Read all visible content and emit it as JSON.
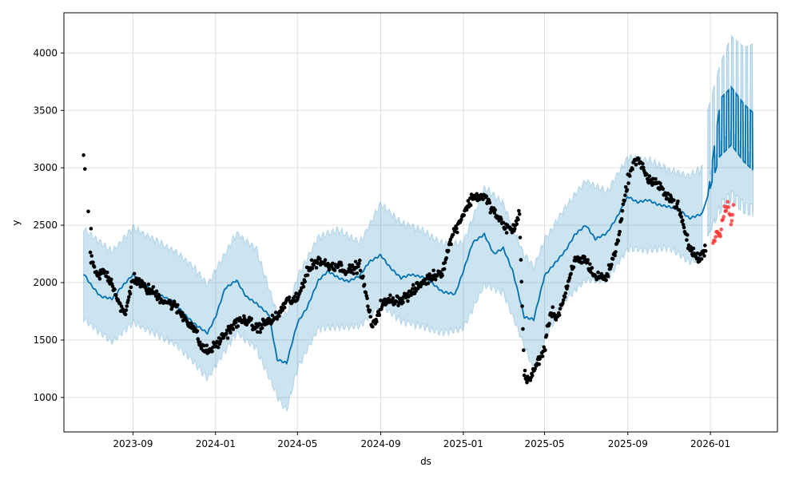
{
  "chart_data": {
    "type": "scatter",
    "title": "",
    "xlabel": "ds",
    "ylabel": "y",
    "x_ticks": [
      "2023-09",
      "2024-01",
      "2024-05",
      "2024-09",
      "2025-01",
      "2025-05",
      "2025-09",
      "2026-01"
    ],
    "y_ticks": [
      1000,
      1500,
      2000,
      2500,
      3000,
      3500,
      4000
    ],
    "xlim": [
      "2023-05-22",
      "2026-04-10"
    ],
    "ylim": [
      700,
      4350
    ],
    "grid": true,
    "legend": "none",
    "colors": {
      "observed": "#000000",
      "test": "#ff3333",
      "forecast": "#0072B2",
      "interval": "#0072B2"
    },
    "series": [
      {
        "kind": "forecast-line",
        "x": [
          "2023-06-20",
          "2023-07-01",
          "2023-07-15",
          "2023-08-01",
          "2023-08-15",
          "2023-09-01",
          "2023-09-15",
          "2023-10-01",
          "2023-10-15",
          "2023-11-01",
          "2023-11-15",
          "2023-12-01",
          "2023-12-20",
          "2024-01-01",
          "2024-01-15",
          "2024-02-01",
          "2024-02-15",
          "2024-03-01",
          "2024-03-20",
          "2024-04-01",
          "2024-04-15",
          "2024-05-01",
          "2024-05-15",
          "2024-06-01",
          "2024-06-15",
          "2024-07-01",
          "2024-07-15",
          "2024-08-01",
          "2024-08-15",
          "2024-09-01",
          "2024-09-15",
          "2024-10-01",
          "2024-10-15",
          "2024-11-01",
          "2024-11-15",
          "2024-12-01",
          "2024-12-20",
          "2025-01-01",
          "2025-01-15",
          "2025-02-01",
          "2025-02-15",
          "2025-03-01",
          "2025-03-15",
          "2025-04-01",
          "2025-04-15",
          "2025-05-01",
          "2025-05-15",
          "2025-06-01",
          "2025-06-15",
          "2025-07-01",
          "2025-07-15",
          "2025-08-01",
          "2025-08-15",
          "2025-09-01",
          "2025-09-15",
          "2025-10-01",
          "2025-10-15",
          "2025-11-01",
          "2025-11-15",
          "2025-12-01",
          "2025-12-20"
        ],
        "y": [
          2080,
          1980,
          1880,
          1860,
          1960,
          2070,
          1990,
          1920,
          1880,
          1830,
          1730,
          1640,
          1560,
          1700,
          1950,
          2020,
          1880,
          1820,
          1720,
          1330,
          1300,
          1650,
          1780,
          2020,
          2100,
          2040,
          2010,
          2060,
          2180,
          2240,
          2130,
          2040,
          2070,
          2050,
          2000,
          1920,
          1900,
          2100,
          2350,
          2420,
          2250,
          2300,
          2100,
          1700,
          1680,
          2060,
          2160,
          2280,
          2420,
          2500,
          2380,
          2430,
          2560,
          2750,
          2700,
          2720,
          2680,
          2660,
          2640,
          2560,
          2600
        ]
      },
      {
        "kind": "interval",
        "x": [
          "2023-06-20",
          "2023-08-01",
          "2023-09-01",
          "2023-10-01",
          "2023-11-01",
          "2023-12-01",
          "2023-12-20",
          "2024-02-01",
          "2024-03-01",
          "2024-04-01",
          "2024-04-15",
          "2024-05-01",
          "2024-06-01",
          "2024-07-01",
          "2024-08-01",
          "2024-09-01",
          "2024-10-01",
          "2024-11-01",
          "2024-12-01",
          "2025-01-01",
          "2025-02-01",
          "2025-03-01",
          "2025-04-01",
          "2025-04-15",
          "2025-05-01",
          "2025-06-01",
          "2025-07-01",
          "2025-08-01",
          "2025-09-01",
          "2025-10-01",
          "2025-11-01",
          "2025-12-01",
          "2025-12-20"
        ],
        "lower": [
          1680,
          1480,
          1650,
          1560,
          1470,
          1300,
          1160,
          1560,
          1430,
          1010,
          880,
          1250,
          1600,
          1610,
          1620,
          1810,
          1660,
          1620,
          1560,
          1600,
          1980,
          1910,
          1450,
          1230,
          1510,
          1850,
          2020,
          2020,
          2290,
          2280,
          2300,
          2180,
          2200
        ],
        "upper": [
          2470,
          2270,
          2480,
          2380,
          2280,
          2130,
          1980,
          2430,
          2300,
          1730,
          1720,
          2050,
          2400,
          2460,
          2350,
          2690,
          2520,
          2460,
          2340,
          2350,
          2830,
          2690,
          2240,
          2140,
          2370,
          2660,
          2890,
          2790,
          3090,
          3070,
          2980,
          2930,
          3000
        ]
      },
      {
        "kind": "observed",
        "x": [
          "2023-06-20",
          "2023-06-25",
          "2023-07-01",
          "2023-07-10",
          "2023-07-20",
          "2023-08-01",
          "2023-08-10",
          "2023-08-20",
          "2023-09-01",
          "2023-09-10",
          "2023-09-20",
          "2023-10-01",
          "2023-10-15",
          "2023-11-01",
          "2023-11-15",
          "2023-12-01",
          "2023-12-10",
          "2023-12-20",
          "2024-01-01",
          "2024-01-15",
          "2024-02-01",
          "2024-02-15",
          "2024-03-01",
          "2024-03-15",
          "2024-04-01",
          "2024-04-15",
          "2024-05-01",
          "2024-05-15",
          "2024-06-01",
          "2024-06-15",
          "2024-07-01",
          "2024-07-15",
          "2024-08-01",
          "2024-08-10",
          "2024-08-20",
          "2024-09-01",
          "2024-09-15",
          "2024-10-01",
          "2024-10-15",
          "2024-11-01",
          "2024-11-15",
          "2024-12-01",
          "2024-12-15",
          "2025-01-01",
          "2025-01-15",
          "2025-02-01",
          "2025-02-15",
          "2025-03-01",
          "2025-03-15",
          "2025-03-25",
          "2025-04-01",
          "2025-04-10",
          "2025-04-20",
          "2025-05-01",
          "2025-05-10",
          "2025-05-20",
          "2025-06-01",
          "2025-06-15",
          "2025-07-01",
          "2025-07-15",
          "2025-08-01",
          "2025-08-15",
          "2025-09-01",
          "2025-09-15",
          "2025-10-01",
          "2025-10-15",
          "2025-11-01",
          "2025-11-15",
          "2025-12-01",
          "2025-12-15",
          "2025-12-25"
        ],
        "y": [
          3000,
          2620,
          2200,
          2050,
          2100,
          2000,
          1850,
          1700,
          2050,
          2000,
          1950,
          1920,
          1850,
          1800,
          1700,
          1600,
          1450,
          1400,
          1450,
          1550,
          1650,
          1680,
          1600,
          1650,
          1700,
          1840,
          1850,
          2100,
          2200,
          2150,
          2150,
          2100,
          2150,
          1900,
          1600,
          1800,
          1850,
          1850,
          1900,
          2000,
          2050,
          2100,
          2400,
          2600,
          2750,
          2750,
          2620,
          2500,
          2450,
          2600,
          1200,
          1150,
          1300,
          1420,
          1750,
          1700,
          1900,
          2200,
          2200,
          2050,
          2050,
          2300,
          2900,
          3100,
          2900,
          2850,
          2750,
          2650,
          2300,
          2200,
          2300
        ]
      },
      {
        "kind": "test",
        "x": [
          "2026-01-05",
          "2026-01-10",
          "2026-01-15",
          "2026-01-20",
          "2026-01-25",
          "2026-02-01",
          "2026-02-05"
        ],
        "y": [
          2350,
          2450,
          2400,
          2600,
          2700,
          2550,
          2650
        ]
      },
      {
        "kind": "future-forecast",
        "x": [
          "2025-12-28",
          "2026-01-15",
          "2026-02-01",
          "2026-02-20",
          "2026-03-05"
        ],
        "y": [
          2750,
          3100,
          3200,
          3050,
          2980
        ],
        "weekly_amplitude": 500,
        "lower": [
          2400,
          2600,
          2700,
          2600,
          2580
        ],
        "upper": [
          3500,
          3900,
          4150,
          4050,
          4080
        ]
      }
    ]
  }
}
